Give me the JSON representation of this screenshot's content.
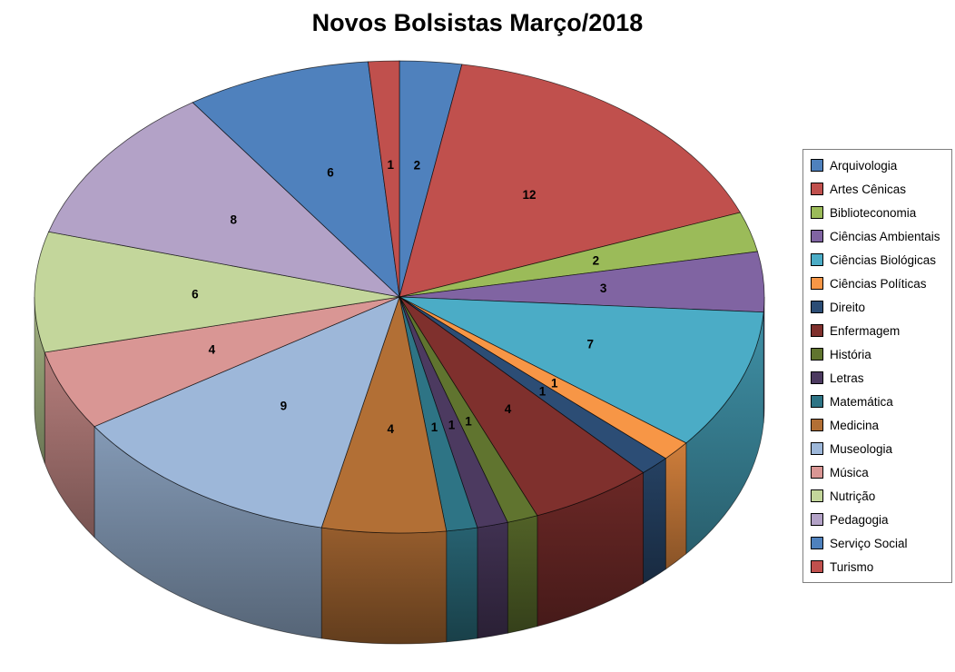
{
  "page": {
    "background": "#FFFFFF"
  },
  "chart_data": {
    "type": "pie",
    "style": "3d",
    "title": "Novos Bolsistas Março/2018",
    "legend_position": "right",
    "data_labels": "values",
    "direction": "clockwise",
    "start_angle": 0,
    "total": 73,
    "categories": [
      "Arquivologia",
      "Artes Cênicas",
      "Biblioteconomia",
      "Ciências Ambientais",
      "Ciências Biológicas",
      "Ciências Políticas",
      "Direito",
      "Enfermagem",
      "História",
      "Letras",
      "Matemática",
      "Medicina",
      "Museologia",
      "Música",
      "Nutrição",
      "Pedagogia",
      "Serviço Social",
      "Turismo"
    ],
    "values": [
      2,
      12,
      2,
      3,
      7,
      1,
      1,
      4,
      1,
      1,
      1,
      4,
      9,
      4,
      6,
      8,
      6,
      1
    ],
    "colors": [
      "#4F81BD",
      "#C0504D",
      "#9BBB59",
      "#8064A2",
      "#4BACC6",
      "#F79646",
      "#2C4D75",
      "#7F302D",
      "#60742F",
      "#4C3A60",
      "#2E7485",
      "#B26F35",
      "#9DB7D9",
      "#D99694",
      "#C3D69B",
      "#B3A2C7",
      "#4F81BD",
      "#C0504D"
    ],
    "title_color": "#000000"
  }
}
